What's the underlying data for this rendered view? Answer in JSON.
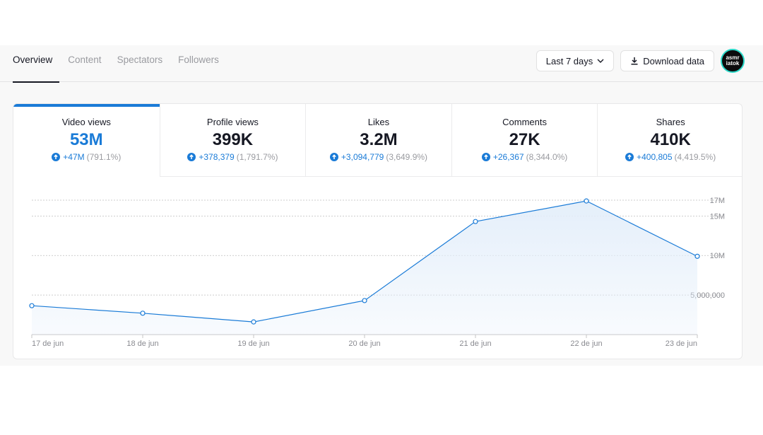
{
  "tabs": [
    {
      "label": "Overview",
      "active": true
    },
    {
      "label": "Content",
      "active": false
    },
    {
      "label": "Spectators",
      "active": false
    },
    {
      "label": "Followers",
      "active": false
    }
  ],
  "actions": {
    "range_label": "Last 7 days",
    "download_label": "Download data",
    "avatar_line1": "asmr",
    "avatar_line2": "iatok"
  },
  "metrics": [
    {
      "label": "Video views",
      "value": "53M",
      "delta": "+47M",
      "pct": "(791.1%)",
      "active": true
    },
    {
      "label": "Profile views",
      "value": "399K",
      "delta": "+378,379",
      "pct": "(1,791.7%)",
      "active": false
    },
    {
      "label": "Likes",
      "value": "3.2M",
      "delta": "+3,094,779",
      "pct": "(3,649.9%)",
      "active": false
    },
    {
      "label": "Comments",
      "value": "27K",
      "delta": "+26,367",
      "pct": "(8,344.0%)",
      "active": false
    },
    {
      "label": "Shares",
      "value": "410K",
      "delta": "+400,805",
      "pct": "(4,419.5%)",
      "active": false
    }
  ],
  "colors": {
    "accent": "#1a7bd7",
    "fill": "#e3eefa",
    "grid": "#bdbdbd"
  },
  "chart_data": {
    "type": "area",
    "categories": [
      "17 de jun",
      "18 de jun",
      "19 de jun",
      "20 de jun",
      "21 de jun",
      "22 de jun",
      "23 de jun"
    ],
    "values": [
      3650000,
      2700000,
      1600000,
      4300000,
      14300000,
      16900000,
      9900000
    ],
    "y_ticks": [
      {
        "value": 17000000,
        "label": "17M"
      },
      {
        "value": 15000000,
        "label": "15M"
      },
      {
        "value": 10000000,
        "label": "10M"
      },
      {
        "value": 5000000,
        "label": "5,000,000"
      }
    ],
    "ylim": [
      0,
      17000000
    ],
    "grid": true
  }
}
